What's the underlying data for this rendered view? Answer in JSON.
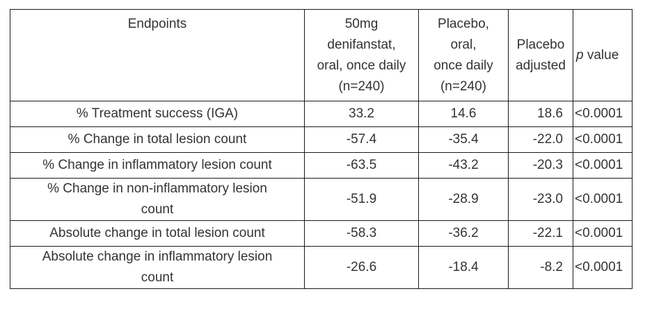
{
  "table": {
    "headers": {
      "endpoints": "Endpoints",
      "denifanstat": [
        "50mg",
        "denifanstat,",
        "oral, once daily",
        "(n=240)"
      ],
      "placebo": [
        "Placebo,",
        "oral,",
        "once daily",
        "(n=240)"
      ],
      "adjusted": [
        "Placebo",
        "adjusted"
      ],
      "p_italic": "p",
      "p_rest": " value"
    },
    "rows": [
      {
        "endpoint": [
          "% Treatment success (IGA)"
        ],
        "denifanstat": "33.2",
        "placebo": "14.6",
        "adjusted": "18.6",
        "p": "<0.0001"
      },
      {
        "endpoint": [
          "% Change in total lesion count"
        ],
        "denifanstat": "-57.4",
        "placebo": "-35.4",
        "adjusted": "-22.0",
        "p": "<0.0001"
      },
      {
        "endpoint": [
          "% Change in inflammatory lesion count"
        ],
        "denifanstat": "-63.5",
        "placebo": "-43.2",
        "adjusted": "-20.3",
        "p": "<0.0001"
      },
      {
        "endpoint": [
          "% Change in non-inflammatory lesion",
          "count"
        ],
        "denifanstat": "-51.9",
        "placebo": "-28.9",
        "adjusted": "-23.0",
        "p": "<0.0001"
      },
      {
        "endpoint": [
          "Absolute change in total lesion count"
        ],
        "denifanstat": "-58.3",
        "placebo": "-36.2",
        "adjusted": "-22.1",
        "p": "<0.0001"
      },
      {
        "endpoint": [
          "Absolute change in inflammatory lesion",
          "count"
        ],
        "denifanstat": "-26.6",
        "placebo": "-18.4",
        "adjusted": "-8.2",
        "p": "<0.0001"
      }
    ]
  }
}
